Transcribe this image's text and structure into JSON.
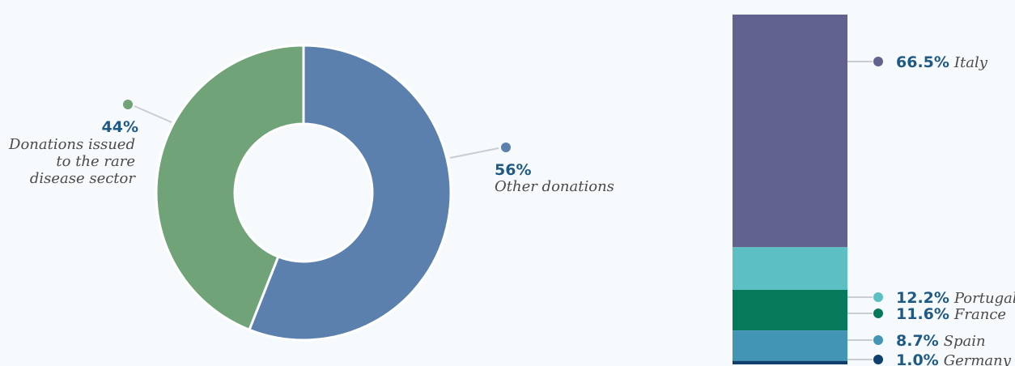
{
  "chart_data": [
    {
      "type": "pie",
      "slices": [
        {
          "value": 56,
          "value_label": "56%",
          "label_lines": [
            "Other donations"
          ],
          "color": "#5b80ae"
        },
        {
          "value": 44,
          "value_label": "44%",
          "label_lines": [
            "Donations issued",
            "to the rare",
            "disease sector"
          ],
          "color": "#71a378"
        }
      ]
    },
    {
      "type": "bar",
      "stacked": true,
      "segments": [
        {
          "country": "Italy",
          "value": 66.5,
          "value_label": "66.5%",
          "color": "#61628e"
        },
        {
          "country": "Portugal",
          "value": 12.2,
          "value_label": "12.2%",
          "color": "#5bbfc4"
        },
        {
          "country": "France",
          "value": 11.6,
          "value_label": "11.6%",
          "color": "#067a5a"
        },
        {
          "country": "Spain",
          "value": 8.7,
          "value_label": "8.7%",
          "color": "#4395b5"
        },
        {
          "country": "Germany",
          "value": 1.0,
          "value_label": "1.0%",
          "color": "#0e3f6e"
        }
      ]
    }
  ]
}
